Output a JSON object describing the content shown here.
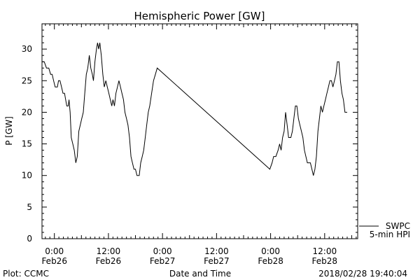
{
  "chart_data": {
    "type": "line",
    "title": "Hemispheric Power [GW]",
    "xlabel": "Date and Time",
    "ylabel": "P [GW]",
    "ylim": [
      0,
      34
    ],
    "xlim": [
      "2018-02-25T21:15",
      "2018-02-28T19:20"
    ],
    "yticks": [
      0,
      5,
      10,
      15,
      20,
      25,
      30
    ],
    "xticks": [
      {
        "t": "2018-02-26T00:00",
        "line1": "0:00",
        "line2": "Feb26"
      },
      {
        "t": "2018-02-26T12:00",
        "line1": "12:00",
        "line2": "Feb26"
      },
      {
        "t": "2018-02-27T00:00",
        "line1": "0:00",
        "line2": "Feb27"
      },
      {
        "t": "2018-02-27T12:00",
        "line1": "12:00",
        "line2": "Feb27"
      },
      {
        "t": "2018-02-28T00:00",
        "line1": "0:00",
        "line2": "Feb28"
      },
      {
        "t": "2018-02-28T12:00",
        "line1": "12:00",
        "line2": "Feb28"
      }
    ],
    "grid": false,
    "legend_position": "bottom-right, outside plot",
    "legend": [
      {
        "line1": "SWPC",
        "line2": "5-min HPI"
      }
    ],
    "series": [
      {
        "color": "#000000",
        "points": [
          [
            "2018-02-25T21:15",
            28
          ],
          [
            "2018-02-25T21:45",
            28
          ],
          [
            "2018-02-25T22:15",
            27
          ],
          [
            "2018-02-25T22:45",
            27
          ],
          [
            "2018-02-25T23:10",
            26
          ],
          [
            "2018-02-25T23:30",
            26
          ],
          [
            "2018-02-25T23:50",
            25
          ],
          [
            "2018-02-26T00:10",
            24
          ],
          [
            "2018-02-26T00:40",
            24
          ],
          [
            "2018-02-26T00:55",
            25
          ],
          [
            "2018-02-26T01:15",
            25
          ],
          [
            "2018-02-26T01:35",
            24
          ],
          [
            "2018-02-26T01:55",
            23
          ],
          [
            "2018-02-26T02:15",
            23
          ],
          [
            "2018-02-26T02:30",
            22
          ],
          [
            "2018-02-26T02:45",
            21
          ],
          [
            "2018-02-26T03:05",
            21
          ],
          [
            "2018-02-26T03:15",
            22
          ],
          [
            "2018-02-26T03:30",
            20
          ],
          [
            "2018-02-26T03:45",
            16
          ],
          [
            "2018-02-26T04:05",
            15
          ],
          [
            "2018-02-26T04:25",
            14
          ],
          [
            "2018-02-26T04:45",
            12
          ],
          [
            "2018-02-26T05:05",
            13
          ],
          [
            "2018-02-26T05:25",
            17
          ],
          [
            "2018-02-26T05:45",
            18
          ],
          [
            "2018-02-26T06:05",
            19
          ],
          [
            "2018-02-26T06:25",
            20
          ],
          [
            "2018-02-26T06:45",
            23
          ],
          [
            "2018-02-26T07:05",
            26
          ],
          [
            "2018-02-26T07:25",
            27
          ],
          [
            "2018-02-26T07:45",
            29
          ],
          [
            "2018-02-26T08:05",
            27
          ],
          [
            "2018-02-26T08:25",
            26
          ],
          [
            "2018-02-26T08:40",
            25
          ],
          [
            "2018-02-26T09:00",
            28
          ],
          [
            "2018-02-26T09:20",
            30
          ],
          [
            "2018-02-26T09:35",
            31
          ],
          [
            "2018-02-26T09:50",
            30
          ],
          [
            "2018-02-26T10:05",
            31
          ],
          [
            "2018-02-26T10:25",
            29
          ],
          [
            "2018-02-26T10:45",
            26
          ],
          [
            "2018-02-26T11:05",
            24
          ],
          [
            "2018-02-26T11:25",
            25
          ],
          [
            "2018-02-26T11:45",
            24
          ],
          [
            "2018-02-26T12:05",
            23
          ],
          [
            "2018-02-26T12:25",
            22
          ],
          [
            "2018-02-26T12:45",
            21
          ],
          [
            "2018-02-26T13:00",
            22
          ],
          [
            "2018-02-26T13:20",
            21
          ],
          [
            "2018-02-26T13:40",
            23
          ],
          [
            "2018-02-26T14:00",
            24
          ],
          [
            "2018-02-26T14:20",
            25
          ],
          [
            "2018-02-26T14:40",
            24
          ],
          [
            "2018-02-26T15:00",
            23
          ],
          [
            "2018-02-26T15:20",
            22
          ],
          [
            "2018-02-26T15:40",
            20
          ],
          [
            "2018-02-26T16:00",
            19
          ],
          [
            "2018-02-26T16:20",
            18
          ],
          [
            "2018-02-26T16:40",
            16
          ],
          [
            "2018-02-26T17:00",
            13
          ],
          [
            "2018-02-26T17:20",
            12
          ],
          [
            "2018-02-26T17:40",
            11
          ],
          [
            "2018-02-26T18:00",
            11
          ],
          [
            "2018-02-26T18:20",
            10
          ],
          [
            "2018-02-26T18:50",
            10
          ],
          [
            "2018-02-26T19:10",
            12
          ],
          [
            "2018-02-26T19:30",
            13
          ],
          [
            "2018-02-26T19:50",
            14
          ],
          [
            "2018-02-26T20:10",
            16
          ],
          [
            "2018-02-26T20:30",
            18
          ],
          [
            "2018-02-26T20:50",
            20
          ],
          [
            "2018-02-26T21:10",
            21
          ],
          [
            "2018-02-26T21:35",
            23
          ],
          [
            "2018-02-26T22:00",
            25
          ],
          [
            "2018-02-26T22:25",
            26
          ],
          [
            "2018-02-26T22:50",
            27
          ],
          [
            "2018-02-27T23:50",
            11
          ],
          [
            "2018-02-28T00:20",
            12
          ],
          [
            "2018-02-28T00:40",
            13
          ],
          [
            "2018-02-28T01:10",
            13
          ],
          [
            "2018-02-28T01:40",
            14
          ],
          [
            "2018-02-28T02:00",
            15
          ],
          [
            "2018-02-28T02:20",
            14
          ],
          [
            "2018-02-28T02:40",
            16
          ],
          [
            "2018-02-28T03:00",
            17
          ],
          [
            "2018-02-28T03:20",
            20
          ],
          [
            "2018-02-28T03:40",
            18
          ],
          [
            "2018-02-28T04:00",
            16
          ],
          [
            "2018-02-28T04:30",
            16
          ],
          [
            "2018-02-28T04:50",
            17
          ],
          [
            "2018-02-28T05:10",
            19
          ],
          [
            "2018-02-28T05:30",
            21
          ],
          [
            "2018-02-28T05:50",
            21
          ],
          [
            "2018-02-28T06:10",
            19
          ],
          [
            "2018-02-28T06:30",
            18
          ],
          [
            "2018-02-28T06:50",
            17
          ],
          [
            "2018-02-28T07:10",
            16
          ],
          [
            "2018-02-28T07:30",
            14
          ],
          [
            "2018-02-28T07:50",
            13
          ],
          [
            "2018-02-28T08:10",
            12
          ],
          [
            "2018-02-28T08:30",
            12
          ],
          [
            "2018-02-28T08:50",
            12
          ],
          [
            "2018-02-28T09:10",
            11
          ],
          [
            "2018-02-28T09:30",
            10
          ],
          [
            "2018-02-28T09:50",
            11
          ],
          [
            "2018-02-28T10:10",
            13
          ],
          [
            "2018-02-28T10:30",
            17
          ],
          [
            "2018-02-28T10:50",
            19
          ],
          [
            "2018-02-28T11:10",
            21
          ],
          [
            "2018-02-28T11:30",
            20
          ],
          [
            "2018-02-28T11:50",
            21
          ],
          [
            "2018-02-28T12:10",
            22
          ],
          [
            "2018-02-28T12:30",
            23
          ],
          [
            "2018-02-28T12:50",
            24
          ],
          [
            "2018-02-28T13:10",
            25
          ],
          [
            "2018-02-28T13:30",
            25
          ],
          [
            "2018-02-28T13:50",
            24
          ],
          [
            "2018-02-28T14:10",
            25
          ],
          [
            "2018-02-28T14:30",
            26
          ],
          [
            "2018-02-28T14:50",
            28
          ],
          [
            "2018-02-28T15:10",
            28
          ],
          [
            "2018-02-28T15:30",
            25
          ],
          [
            "2018-02-28T15:50",
            23
          ],
          [
            "2018-02-28T16:10",
            22
          ],
          [
            "2018-02-28T16:30",
            20
          ],
          [
            "2018-02-28T17:00",
            20
          ]
        ]
      }
    ]
  },
  "footer": {
    "left": "Plot: CCMC",
    "right": "2018/02/28 19:40:04"
  }
}
